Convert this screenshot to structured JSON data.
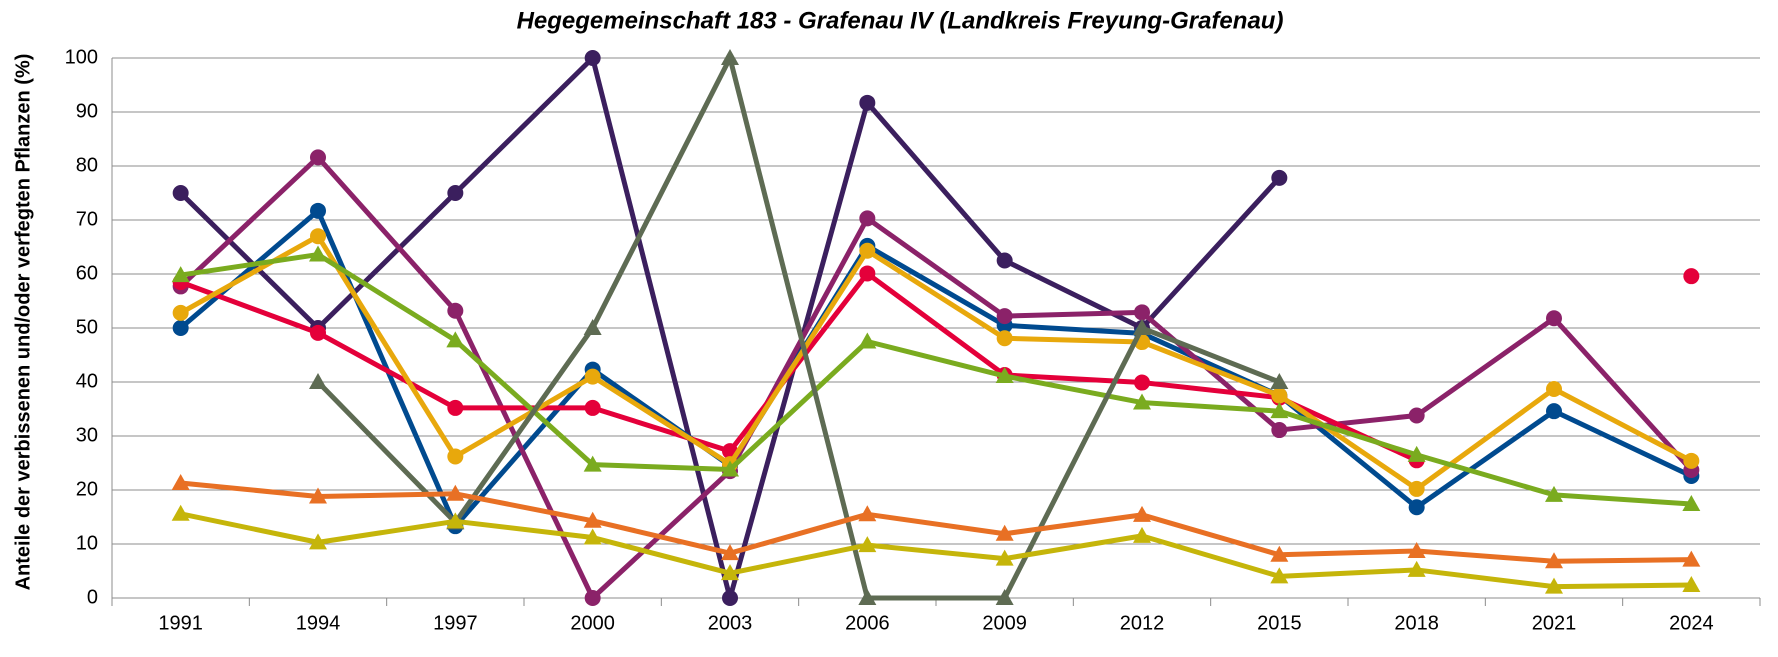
{
  "chart_data": {
    "type": "line",
    "title": "Hegegemeinschaft 183 - Grafenau IV (Landkreis Freyung-Grafenau)",
    "y_label": "Anteile der verbissenen und/oder verfegten Pflanzen (%)",
    "categories": [
      "1991",
      "1994",
      "1997",
      "2000",
      "2003",
      "2006",
      "2009",
      "2012",
      "2015",
      "2018",
      "2021",
      "2024"
    ],
    "ylim": [
      0,
      100
    ],
    "yticks": [
      0,
      10,
      20,
      30,
      40,
      50,
      60,
      70,
      80,
      90,
      100
    ],
    "grid": true,
    "series": [
      {
        "color": "#3b1f5e",
        "marker": "circle",
        "values": [
          75,
          50,
          75,
          100,
          0,
          91.7,
          62.5,
          50,
          77.8,
          null,
          null,
          null
        ]
      },
      {
        "color": "#004a8f",
        "marker": "circle",
        "values": [
          50,
          71.7,
          13.3,
          42.3,
          24.5,
          65.2,
          50.5,
          49,
          37.5,
          16.8,
          34.6,
          22.6
        ]
      },
      {
        "color": "#8b2269",
        "marker": "circle",
        "values": [
          57.7,
          81.6,
          53.2,
          0,
          23.5,
          70.3,
          52.2,
          52.9,
          31.1,
          33.8,
          51.8,
          23.7
        ]
      },
      {
        "color": "#e4003a",
        "marker": "circle",
        "values": [
          58.5,
          49.1,
          35.2,
          35.2,
          27.2,
          60.1,
          41.3,
          39.9,
          37.1,
          25.5,
          null,
          59.6
        ]
      },
      {
        "color": "#e8a80c",
        "marker": "circle",
        "values": [
          52.8,
          67,
          26.2,
          41,
          24.8,
          64.3,
          48.1,
          47.4,
          37.5,
          20.2,
          38.7,
          25.4
        ]
      },
      {
        "color": "#7aab1f",
        "marker": "triangle",
        "values": [
          59.8,
          63.6,
          47.7,
          24.7,
          23.8,
          47.5,
          41.1,
          36.2,
          34.6,
          26.5,
          19.1,
          17.4
        ]
      },
      {
        "color": "#5e6b53",
        "marker": "triangle",
        "values": [
          null,
          40,
          14,
          50,
          100,
          0,
          0,
          50,
          40,
          null,
          null,
          null
        ]
      },
      {
        "color": "#e87024",
        "marker": "triangle",
        "values": [
          21.3,
          18.8,
          19.3,
          14.3,
          8.3,
          15.5,
          11.9,
          15.4,
          8,
          8.7,
          6.8,
          7.1
        ]
      },
      {
        "color": "#c5b50a",
        "marker": "triangle",
        "values": [
          15.6,
          10.3,
          14.2,
          11.2,
          4.6,
          9.8,
          7.3,
          11.5,
          4,
          5.2,
          2.1,
          2.4
        ]
      }
    ]
  }
}
